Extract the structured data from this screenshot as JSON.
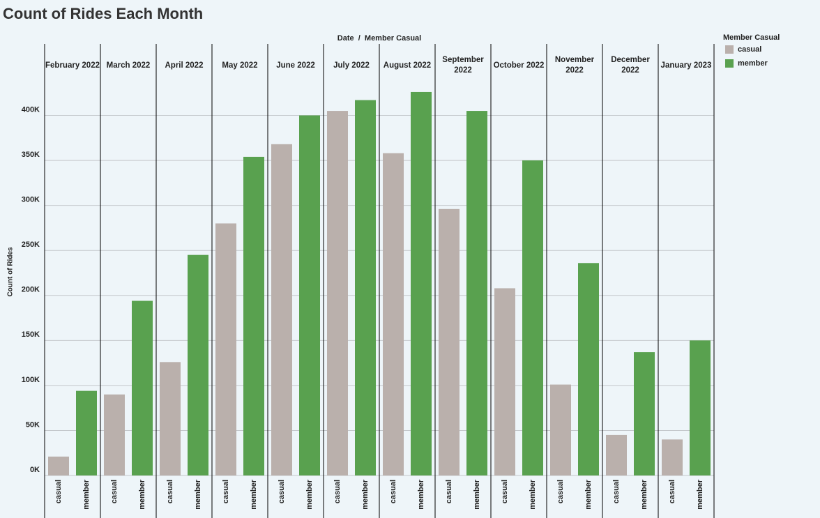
{
  "chart_data": {
    "type": "bar",
    "title": "Count of Rides Each Month",
    "header": "Date  /  Member Casual",
    "y_label": "Count of Rides",
    "legend_title": "Member Casual",
    "categories": [
      "February 2022",
      "March 2022",
      "April 2022",
      "May 2022",
      "June 2022",
      "July 2022",
      "August 2022",
      "September 2022",
      "October 2022",
      "November 2022",
      "December 2022",
      "January 2023"
    ],
    "series": [
      {
        "name": "casual",
        "color": "#bab0ac",
        "values": [
          21000,
          90000,
          126000,
          280000,
          368000,
          405000,
          358000,
          296000,
          208000,
          101000,
          45000,
          40000
        ]
      },
      {
        "name": "member",
        "color": "#59a14f",
        "values": [
          94000,
          194000,
          245000,
          354000,
          400000,
          417000,
          426000,
          405000,
          350000,
          236000,
          137000,
          150000
        ]
      }
    ],
    "ylim": [
      0,
      443000
    ],
    "yticks": [
      {
        "value": 0,
        "label": "0K"
      },
      {
        "value": 50000,
        "label": "50K"
      },
      {
        "value": 100000,
        "label": "100K"
      },
      {
        "value": 150000,
        "label": "150K"
      },
      {
        "value": 200000,
        "label": "200K"
      },
      {
        "value": 250000,
        "label": "250K"
      },
      {
        "value": 300000,
        "label": "300K"
      },
      {
        "value": 350000,
        "label": "350K"
      },
      {
        "value": 400000,
        "label": "400K"
      }
    ],
    "grid": true
  }
}
